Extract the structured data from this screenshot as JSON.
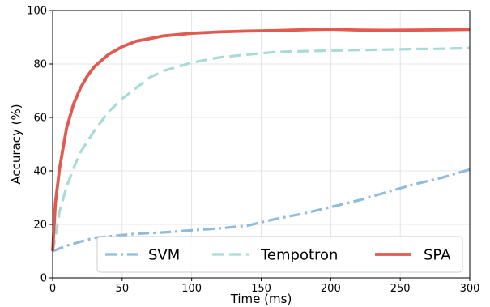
{
  "chart_data": {
    "type": "line",
    "xlabel": "Time (ms)",
    "ylabel": "Accuracy (%)",
    "xlim": [
      0,
      300
    ],
    "ylim": [
      0,
      100
    ],
    "xticks": [
      0,
      50,
      100,
      150,
      200,
      250,
      300
    ],
    "yticks": [
      0,
      20,
      40,
      60,
      80,
      100
    ],
    "grid": true,
    "legend": {
      "placement": "bottom-right",
      "columns": 3
    },
    "series": [
      {
        "name": "SVM",
        "color": "#8fbcdc",
        "style": "dashdot",
        "x": [
          0,
          5,
          10,
          20,
          30,
          40,
          50,
          60,
          80,
          100,
          120,
          140,
          160,
          180,
          200,
          220,
          240,
          260,
          280,
          300
        ],
        "y": [
          10,
          11,
          12,
          13.5,
          15,
          15.5,
          16,
          16.5,
          17,
          17.8,
          18.5,
          19.5,
          22,
          24,
          26.5,
          29,
          32,
          35,
          37.5,
          40.5
        ]
      },
      {
        "name": "Tempotron",
        "color": "#a6dcd8",
        "style": "dashed",
        "x": [
          0,
          2,
          5,
          10,
          15,
          20,
          30,
          40,
          50,
          60,
          70,
          80,
          90,
          100,
          120,
          140,
          160,
          180,
          200,
          220,
          240,
          260,
          280,
          300
        ],
        "y": [
          10,
          15,
          25,
          34,
          41,
          47,
          55,
          62,
          67,
          71,
          75,
          77.5,
          79,
          80.5,
          82.5,
          83.5,
          84.5,
          84.8,
          85,
          85.2,
          85.4,
          85.6,
          85.7,
          86
        ]
      },
      {
        "name": "SPA",
        "color": "#e05a4f",
        "style": "solid",
        "x": [
          0,
          2,
          5,
          8,
          10,
          15,
          20,
          25,
          30,
          40,
          50,
          60,
          70,
          80,
          100,
          120,
          140,
          160,
          180,
          200,
          220,
          240,
          260,
          280,
          300
        ],
        "y": [
          10,
          28,
          41,
          50,
          56,
          65,
          71,
          75.5,
          79,
          83.5,
          86.5,
          88.5,
          89.5,
          90.5,
          91.5,
          92,
          92.3,
          92.5,
          92.8,
          93,
          92.7,
          92.6,
          92.7,
          92.8,
          92.9
        ]
      }
    ]
  }
}
